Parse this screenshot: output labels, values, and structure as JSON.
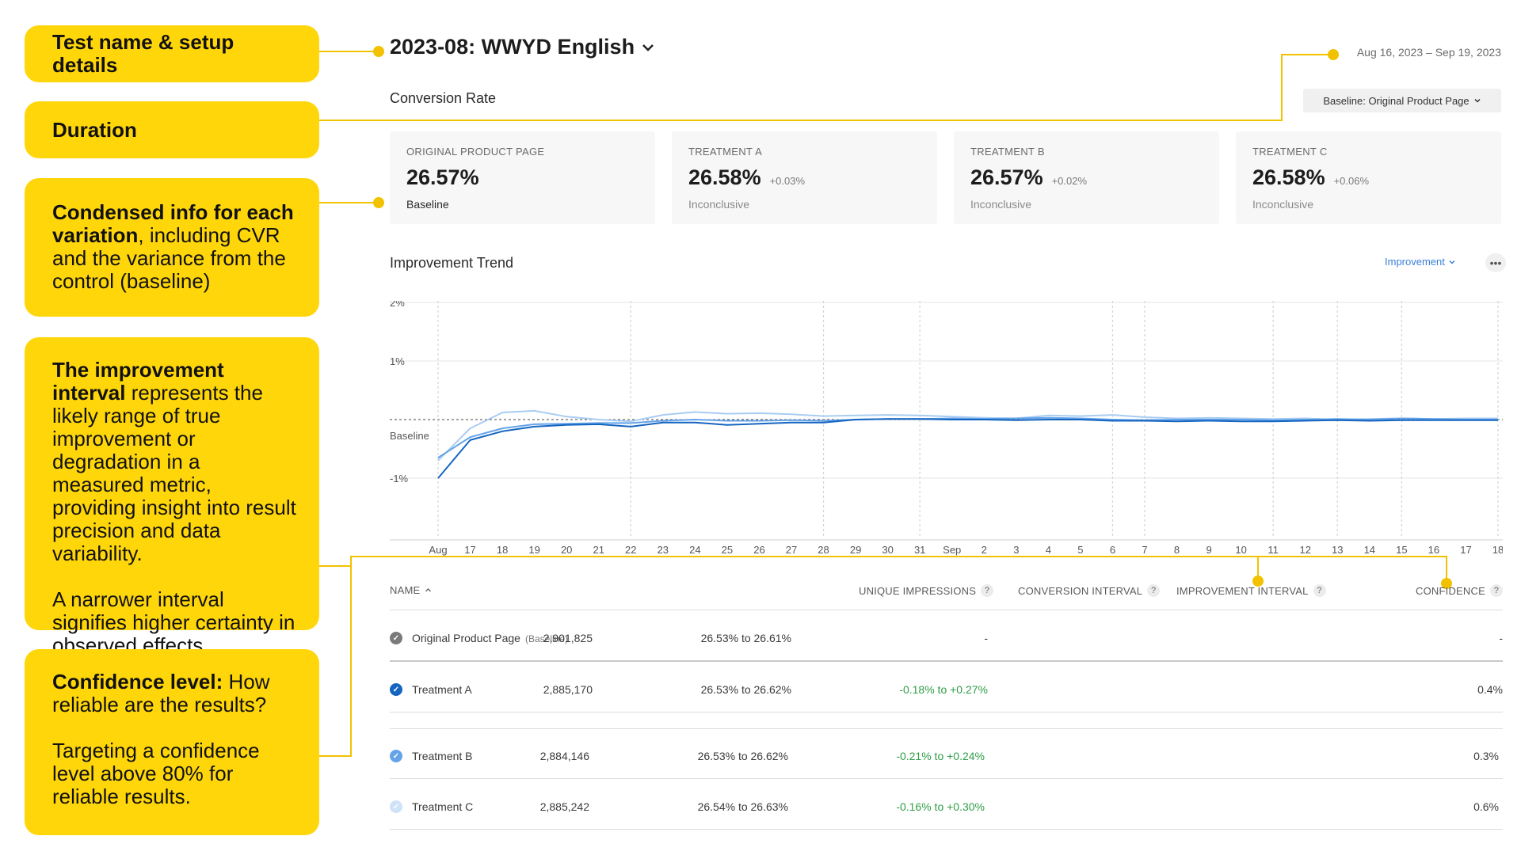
{
  "callouts": {
    "setup": {
      "bold": "Test name & setup details"
    },
    "duration": {
      "bold": "Duration"
    },
    "condensed": {
      "bold": "Condensed info for each variation",
      "text": ", including CVR and the variance from the control (baseline)"
    },
    "improvement": {
      "bold": "The improvement interval",
      "text": " represents the likely range of true improvement or degradation in a measured metric, providing insight into result precision and data variability.",
      "text2": "A narrower interval signifies higher certainty in observed effects."
    },
    "confidence": {
      "bold": "Confidence level:",
      "text": " How reliable are the results?",
      "text2": "Targeting a confidence level above 80% for reliable results."
    }
  },
  "header": {
    "test_name": "2023-08: WWYD English",
    "date_range": "Aug 16, 2023 – Sep 19, 2023",
    "metric_title": "Conversion Rate",
    "baseline_select": "Baseline: Original Product Page"
  },
  "variations": [
    {
      "label": "ORIGINAL PRODUCT PAGE",
      "value": "26.57%",
      "delta": "",
      "status": "Baseline"
    },
    {
      "label": "TREATMENT A",
      "value": "26.58%",
      "delta": "+0.03%",
      "status": "Inconclusive"
    },
    {
      "label": "TREATMENT B",
      "value": "26.57%",
      "delta": "+0.02%",
      "status": "Inconclusive"
    },
    {
      "label": "TREATMENT C",
      "value": "26.58%",
      "delta": "+0.06%",
      "status": "Inconclusive"
    }
  ],
  "trend": {
    "title": "Improvement Trend",
    "metric_select": "Improvement"
  },
  "chart_data": {
    "type": "line",
    "ylabel": "",
    "xlabel": "",
    "ylim": [
      -2,
      2
    ],
    "ytick_labels": [
      "2%",
      "1%",
      "Baseline",
      "-1%"
    ],
    "ytick_values": [
      2,
      1,
      0,
      -1
    ],
    "x": [
      "Aug",
      "17",
      "18",
      "19",
      "20",
      "21",
      "22",
      "23",
      "24",
      "25",
      "26",
      "27",
      "28",
      "29",
      "30",
      "31",
      "Sep",
      "2",
      "3",
      "4",
      "5",
      "6",
      "7",
      "8",
      "9",
      "10",
      "11",
      "12",
      "13",
      "14",
      "15",
      "16",
      "17",
      "18"
    ],
    "series": [
      {
        "color": "#1565c0",
        "values": [
          -1.0,
          -0.35,
          -0.2,
          -0.12,
          -0.09,
          -0.08,
          -0.12,
          -0.05,
          -0.05,
          -0.09,
          -0.07,
          -0.05,
          -0.05,
          0.0,
          0.01,
          0.01,
          0.0,
          0.0,
          -0.01,
          0.0,
          0.0,
          -0.02,
          -0.02,
          -0.03,
          -0.02,
          -0.03,
          -0.03,
          -0.02,
          -0.01,
          -0.02,
          -0.01,
          -0.01,
          -0.01,
          -0.01
        ]
      },
      {
        "color": "#64a3e8",
        "values": [
          -0.65,
          -0.3,
          -0.15,
          -0.08,
          -0.07,
          -0.06,
          -0.06,
          -0.02,
          0.0,
          -0.02,
          -0.02,
          -0.01,
          -0.02,
          0.0,
          0.01,
          0.01,
          0.02,
          0.01,
          0.02,
          0.03,
          0.02,
          0.0,
          -0.01,
          0.0,
          0.0,
          0.0,
          -0.01,
          0.0,
          0.01,
          0.0,
          0.02,
          0.01,
          0.0,
          0.0
        ]
      },
      {
        "color": "#a9ccf2",
        "values": [
          -0.7,
          -0.15,
          0.12,
          0.15,
          0.05,
          0.0,
          -0.03,
          0.08,
          0.13,
          0.1,
          0.11,
          0.09,
          0.06,
          0.07,
          0.08,
          0.07,
          0.05,
          0.03,
          0.02,
          0.07,
          0.06,
          0.08,
          0.04,
          0.02,
          0.03,
          0.02,
          0.01,
          0.02,
          0.0,
          0.01,
          0.02,
          0.01,
          0.02,
          0.02
        ]
      }
    ],
    "dashed_vertical_at": [
      "Aug",
      "22",
      "28",
      "31",
      "6",
      "7",
      "11",
      "13",
      "15",
      "18"
    ]
  },
  "table": {
    "headers": {
      "name": "NAME",
      "impressions": "UNIQUE IMPRESSIONS",
      "conversion": "CONVERSION INTERVAL",
      "improvement": "IMPROVEMENT INTERVAL",
      "confidence": "CONFIDENCE"
    },
    "rows": [
      {
        "name": "Original Product Page",
        "suffix": "(Baseline)",
        "dot_color": "#7a7a7a",
        "impressions": "2,901,825",
        "conversion": "26.53% to 26.61%",
        "improvement": "-",
        "confidence": "-"
      },
      {
        "name": "Treatment A",
        "suffix": "",
        "dot_color": "#1565c0",
        "impressions": "2,885,170",
        "conversion": "26.53% to 26.62%",
        "improvement": "-0.18% to +0.27%",
        "confidence": "0.4%"
      },
      {
        "name": "Treatment B",
        "suffix": "",
        "dot_color": "#64a3e8",
        "impressions": "2,884,146",
        "conversion": "26.53% to 26.62%",
        "improvement": "-0.21% to +0.24%",
        "confidence": "0.3%"
      },
      {
        "name": "Treatment C",
        "suffix": "",
        "dot_color": "#cfe2f8",
        "impressions": "2,885,242",
        "conversion": "26.54% to 26.63%",
        "improvement": "-0.16% to +0.30%",
        "confidence": "0.6%"
      }
    ]
  },
  "colors": {
    "callout": "#ffd60a",
    "positive": "#2e9e47",
    "link": "#3b7fd6"
  }
}
